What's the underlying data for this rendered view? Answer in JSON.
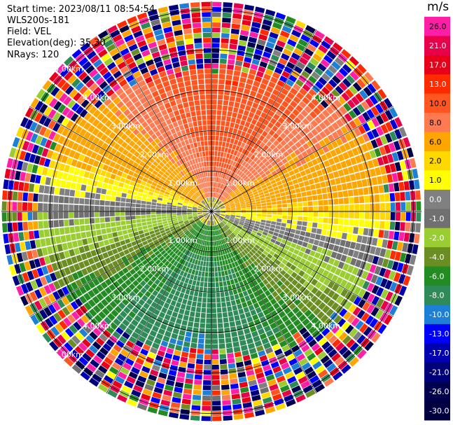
{
  "header": {
    "start_time": "Start time: 2023/08/11 08:54:54",
    "instrument": "WLS200s-181",
    "field": "Field: VEL",
    "elevation": "Elevation(deg): 35.30",
    "nrays": "NRays: 120"
  },
  "colorbar": {
    "unit": "m/s",
    "ticks": [
      "26.0",
      "21.0",
      "17.0",
      "13.0",
      "10.0",
      "8.0",
      "6.0",
      "2.0",
      "1.0",
      "0.0",
      "-1.0",
      "-2.0",
      "-4.0",
      "-6.0",
      "-8.0",
      "-10.0",
      "-13.0",
      "-17.0",
      "-21.0",
      "-26.0",
      "-30.0"
    ],
    "colors": [
      "#ff1fa6",
      "#e8004a",
      "#e8001a",
      "#ff2a00",
      "#ff5520",
      "#ff7a50",
      "#ffa500",
      "#ffd800",
      "#ffff00",
      "#808080",
      "#707070",
      "#9acd32",
      "#6b8e23",
      "#228b22",
      "#2e8b57",
      "#1e7fd6",
      "#0000ff",
      "#0000b0",
      "#00007a",
      "#00004d",
      "#000040"
    ]
  },
  "chart_data": {
    "type": "ppi",
    "field": "VEL",
    "unit": "m/s",
    "elevation_deg": 35.3,
    "nrays": 120,
    "range_rings_km": [
      1,
      2,
      3,
      4,
      5
    ],
    "ring_labels": [
      "1.00km",
      "2.00km",
      "3.00km",
      "4.00km",
      "5.00km"
    ],
    "max_range_km": 5.2,
    "velocity_pattern": {
      "description_sectors": [
        {
          "direction": "north",
          "velocity_ms": 6.0
        },
        {
          "direction": "east",
          "velocity_ms": 2.0
        },
        {
          "direction": "south",
          "velocity_ms": -8.0
        },
        {
          "direction": "west",
          "velocity_ms": 0.0
        }
      ]
    }
  }
}
